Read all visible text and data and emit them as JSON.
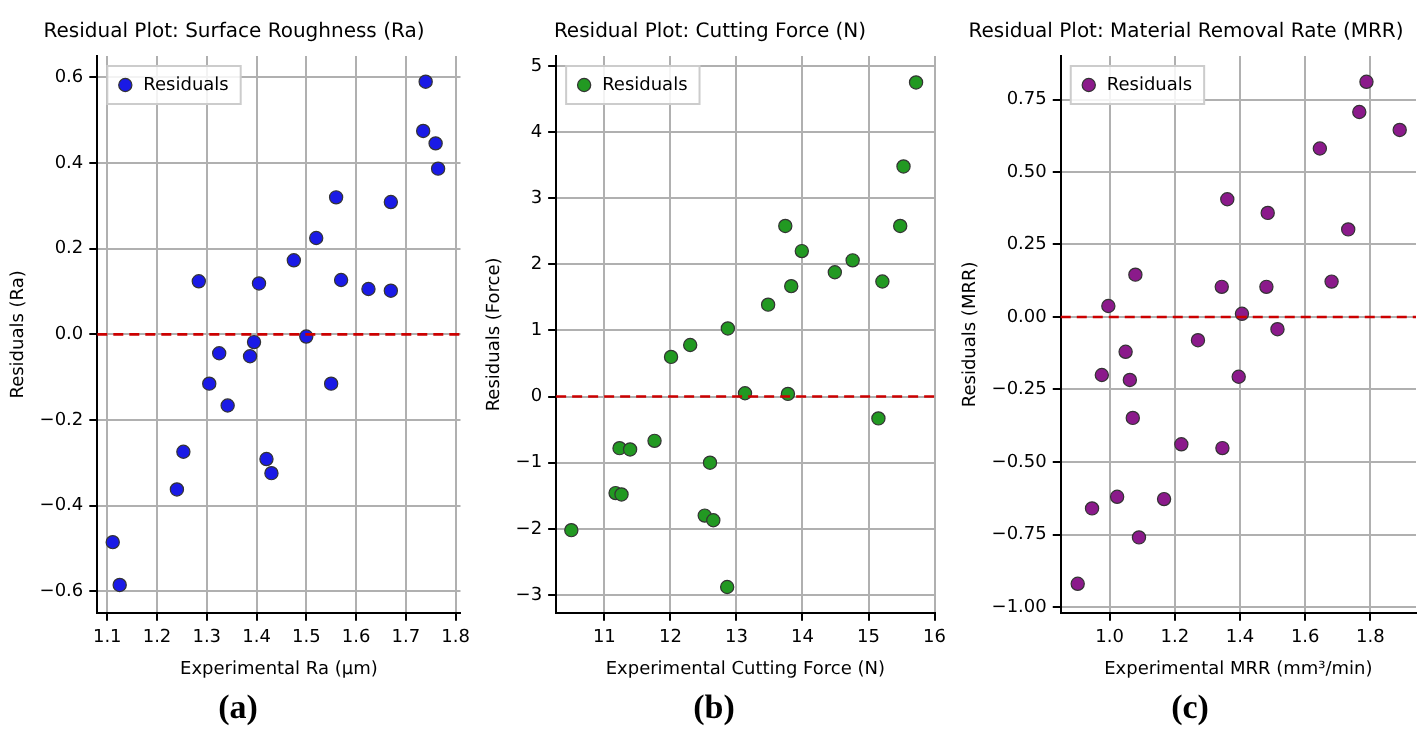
{
  "chart_data": [
    {
      "type": "scatter",
      "title": "Residual Plot: Surface Roughness (Ra)",
      "xlabel": "Experimental Ra (μm)",
      "ylabel": "Residuals (Ra)",
      "x": [
        1.111,
        1.125,
        1.24,
        1.253,
        1.284,
        1.305,
        1.325,
        1.342,
        1.387,
        1.395,
        1.405,
        1.42,
        1.43,
        1.475,
        1.5,
        1.52,
        1.55,
        1.56,
        1.57,
        1.625,
        1.67,
        1.67,
        1.735,
        1.74,
        1.76,
        1.765
      ],
      "series": [
        {
          "name": "Residuals",
          "color": "#1a1ae6",
          "values": [
            -0.485,
            -0.585,
            -0.362,
            -0.274,
            0.124,
            -0.115,
            -0.044,
            -0.166,
            -0.051,
            -0.018,
            0.119,
            -0.291,
            -0.324,
            0.173,
            -0.005,
            0.225,
            -0.115,
            0.32,
            0.127,
            0.106,
            0.102,
            0.309,
            0.475,
            0.59,
            0.446,
            0.387
          ]
        }
      ],
      "xlim": [
        1.08,
        1.81
      ],
      "ylim": [
        -0.65,
        0.65
      ],
      "xticks": [
        1.1,
        1.2,
        1.3,
        1.4,
        1.5,
        1.6,
        1.7,
        1.8
      ],
      "yticks": [
        {
          "value": -0.6,
          "label": "−0.6"
        },
        {
          "value": -0.4,
          "label": "−0.4"
        },
        {
          "value": -0.2,
          "label": "−0.2"
        },
        {
          "value": 0,
          "label": "0.0"
        },
        0.2,
        0.4,
        0.6
      ],
      "ref_lines": [
        {
          "axis": "y",
          "value": 0,
          "color": "#cc0000",
          "line_style": "dashed"
        }
      ],
      "grid": true,
      "legend": "top left",
      "marker": "circle",
      "annotations": [
        "(a)"
      ]
    },
    {
      "type": "scatter",
      "title": "Residual Plot: Cutting Force (N)",
      "xlabel": "Experimental Cutting Force (N)",
      "ylabel": "Residuals (Force)",
      "x": [
        10.5,
        11.17,
        11.26,
        11.23,
        11.39,
        11.76,
        12.01,
        12.3,
        12.52,
        12.6,
        12.65,
        12.87,
        12.86,
        13.13,
        13.48,
        13.74,
        13.78,
        13.83,
        13.99,
        14.49,
        14.76,
        15.15,
        15.21,
        15.48,
        15.53,
        15.72
      ],
      "series": [
        {
          "name": "Residuals",
          "color": "#229922",
          "values": [
            -2.02,
            -1.46,
            -1.48,
            -0.78,
            -0.8,
            -0.67,
            0.6,
            0.78,
            -1.8,
            -1.0,
            -1.87,
            1.03,
            -2.88,
            0.05,
            1.39,
            2.58,
            0.04,
            1.67,
            2.2,
            1.88,
            2.06,
            -0.33,
            1.74,
            2.58,
            3.48,
            4.75
          ]
        }
      ],
      "xlim": [
        10.27,
        16
      ],
      "ylim": [
        -3.27,
        5.15
      ],
      "xticks": [
        11,
        12,
        13,
        14,
        15,
        16
      ],
      "yticks": [
        {
          "value": -3,
          "label": "−3"
        },
        {
          "value": -2,
          "label": "−2"
        },
        {
          "value": -1,
          "label": "−1"
        },
        0,
        1,
        2,
        3,
        4,
        5
      ],
      "ref_lines": [
        {
          "axis": "y",
          "value": 0,
          "color": "#cc0000",
          "line_style": "dashed"
        }
      ],
      "grid": true,
      "legend": "top left",
      "marker": "circle",
      "annotations": [
        "(b)"
      ]
    },
    {
      "type": "scatter",
      "title": "Residual Plot: Material Removal Rate (MRR)",
      "xlabel": "Experimental MRR (mm³/min)",
      "ylabel": "Residuals (MRR)",
      "x": [
        0.902,
        0.946,
        0.976,
        0.996,
        1.023,
        1.049,
        1.062,
        1.071,
        1.079,
        1.09,
        1.167,
        1.22,
        1.271,
        1.344,
        1.346,
        1.361,
        1.396,
        1.406,
        1.481,
        1.485,
        1.515,
        1.645,
        1.681,
        1.732,
        1.766,
        1.788,
        1.89
      ],
      "series": [
        {
          "name": "Residuals",
          "color": "#8b1a8b",
          "values": [
            -0.92,
            -0.66,
            -0.2,
            0.038,
            -0.62,
            -0.12,
            -0.217,
            -0.348,
            0.146,
            -0.76,
            -0.628,
            -0.439,
            -0.08,
            0.104,
            -0.452,
            0.406,
            -0.206,
            0.011,
            0.104,
            0.359,
            -0.042,
            0.581,
            0.122,
            0.302,
            0.707,
            0.811,
            0.645
          ]
        }
      ],
      "xlim": [
        0.85,
        1.94
      ],
      "ylim": [
        -1.02,
        0.9
      ],
      "xticks": [
        {
          "value": 1,
          "label": "1.0"
        },
        1.2,
        1.4,
        1.6,
        1.8
      ],
      "yticks": [
        {
          "value": -1,
          "label": "−1.00"
        },
        {
          "value": -0.75,
          "label": "−0.75"
        },
        {
          "value": -0.5,
          "label": "−0.50"
        },
        {
          "value": -0.25,
          "label": "−0.25"
        },
        {
          "value": 0,
          "label": "0.00"
        },
        0.25,
        {
          "value": 0.5,
          "label": "0.50"
        },
        0.75
      ],
      "ref_lines": [
        {
          "axis": "y",
          "value": 0,
          "color": "#cc0000",
          "line_style": "dashed"
        }
      ],
      "grid": true,
      "legend": "top left",
      "marker": "circle",
      "annotations": [
        "(c)"
      ]
    }
  ]
}
